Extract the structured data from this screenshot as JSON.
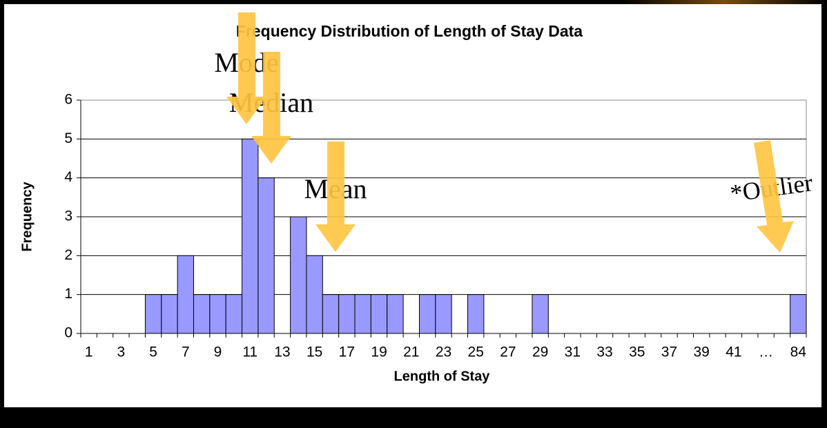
{
  "chart_data": {
    "type": "bar",
    "title": "Frequency Distribution of Length of Stay Data",
    "x_label": "Length of Stay",
    "y_label": "Frequency",
    "categories": [
      "1",
      null,
      "3",
      null,
      "5",
      null,
      "7",
      null,
      "9",
      null,
      "11",
      null,
      "13",
      null,
      "15",
      null,
      "17",
      null,
      "19",
      null,
      "21",
      null,
      "23",
      null,
      "25",
      null,
      "27",
      null,
      "29",
      null,
      "31",
      null,
      "33",
      null,
      "35",
      null,
      "37",
      null,
      "39",
      null,
      "41",
      null,
      "…",
      null,
      "84"
    ],
    "values": [
      0,
      0,
      0,
      0,
      1,
      1,
      2,
      1,
      1,
      1,
      5,
      4,
      0,
      3,
      2,
      1,
      1,
      1,
      1,
      1,
      0,
      1,
      1,
      0,
      1,
      0,
      0,
      0,
      1,
      0,
      0,
      0,
      0,
      0,
      0,
      0,
      0,
      0,
      0,
      0,
      0,
      0,
      0,
      0,
      1
    ],
    "color": "#9999ff",
    "ylim": [
      0,
      6
    ],
    "yticks": [
      0,
      1,
      2,
      3,
      4,
      5,
      6
    ],
    "grid": true,
    "annotations": [
      "Mode",
      "Median",
      "Mean",
      "*Outlier"
    ]
  }
}
